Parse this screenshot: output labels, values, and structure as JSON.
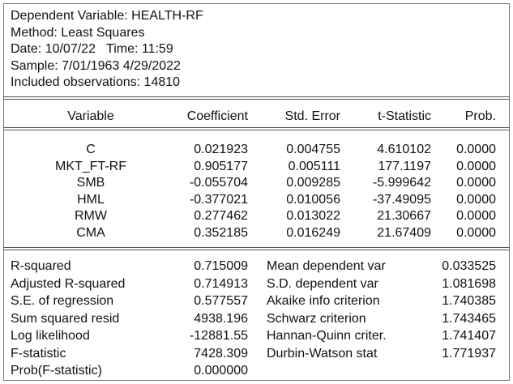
{
  "header": {
    "dep_var": "Dependent Variable: HEALTH-RF",
    "method": "Method: Least Squares",
    "date": "Date: 10/07/22   Time: 11:59",
    "sample": "Sample: 7/01/1963 4/29/2022",
    "obs": "Included observations: 14810"
  },
  "columns": [
    "Variable",
    "Coefficient",
    "Std. Error",
    "t-Statistic",
    "Prob."
  ],
  "rows": [
    {
      "var": "C",
      "coef": "0.021923",
      "se": "0.004755",
      "t": "4.610102",
      "p": "0.0000"
    },
    {
      "var": "MKT_FT-RF",
      "coef": "0.905177",
      "se": "0.005111",
      "t": "177.1197",
      "p": "0.0000"
    },
    {
      "var": "SMB",
      "coef": "-0.055704",
      "se": "0.009285",
      "t": "-5.999642",
      "p": "0.0000"
    },
    {
      "var": "HML",
      "coef": "-0.377021",
      "se": "0.010056",
      "t": "-37.49095",
      "p": "0.0000"
    },
    {
      "var": "RMW",
      "coef": "0.277462",
      "se": "0.013022",
      "t": "21.30667",
      "p": "0.0000"
    },
    {
      "var": "CMA",
      "coef": "0.352185",
      "se": "0.016249",
      "t": "21.67409",
      "p": "0.0000"
    }
  ],
  "stats_left": [
    {
      "label": "R-squared",
      "value": "0.715009"
    },
    {
      "label": "Adjusted R-squared",
      "value": "0.714913"
    },
    {
      "label": "S.E. of regression",
      "value": "0.577557"
    },
    {
      "label": "Sum squared resid",
      "value": "4938.196"
    },
    {
      "label": "Log likelihood",
      "value": "-12881.55"
    },
    {
      "label": "F-statistic",
      "value": "7428.309"
    },
    {
      "label": "Prob(F-statistic)",
      "value": "0.000000"
    }
  ],
  "stats_right": [
    {
      "label": "Mean dependent var",
      "value": "0.033525"
    },
    {
      "label": "S.D. dependent var",
      "value": "1.081698"
    },
    {
      "label": "Akaike info criterion",
      "value": "1.740385"
    },
    {
      "label": "Schwarz criterion",
      "value": "1.743465"
    },
    {
      "label": "Hannan-Quinn criter.",
      "value": "1.741407"
    },
    {
      "label": "Durbin-Watson stat",
      "value": "1.771937"
    }
  ]
}
